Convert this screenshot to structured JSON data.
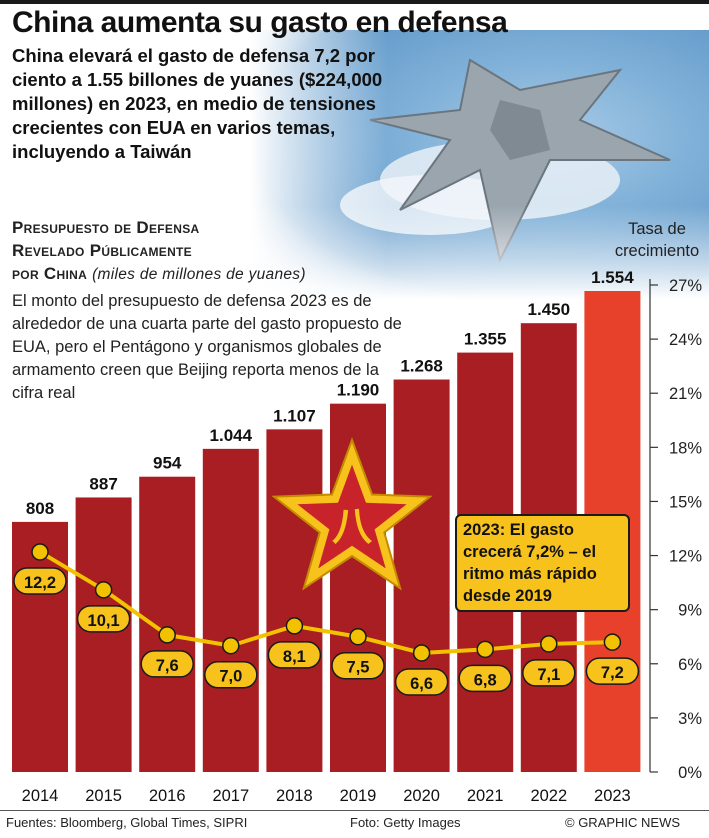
{
  "header": {
    "title": "China aumenta su gasto en defensa",
    "subtitle": "China elevará el gasto de defensa 7,2 por ciento a 1.55 billones de yuanes ($224,000  millones) en 2023, en medio de tensiones crecientes con EUA en varios temas, incluyendo a Taiwán"
  },
  "chart_section": {
    "title_line1": "Presupuesto de Defensa",
    "title_line2": "Revelado Públicamente",
    "title_line3": "por China",
    "unit": "(miles de millones de yuanes)",
    "note": "El monto del presupuesto de defensa 2023 es de alrededor de una cuarta parte del gasto propuesto de EUA, pero el Pentágono y organismos globales de armamento creen que Beijing reporta menos de la cifra real",
    "right_axis_title": "Tasa de crecimiento"
  },
  "chart_data": {
    "type": "bar",
    "categories": [
      "2014",
      "2015",
      "2016",
      "2017",
      "2018",
      "2019",
      "2020",
      "2021",
      "2022",
      "2023"
    ],
    "series": [
      {
        "type": "bar",
        "values": [
          808,
          887,
          954,
          1044,
          1107,
          1190,
          1268,
          1355,
          1450,
          1554
        ],
        "labels": [
          "808",
          "887",
          "954",
          "1.044",
          "1.107",
          "1.190",
          "1.268",
          "1.355",
          "1.450",
          "1.554"
        ]
      },
      {
        "type": "line",
        "axis": "right",
        "values": [
          12.2,
          10.1,
          7.6,
          7.0,
          8.1,
          7.5,
          6.6,
          6.8,
          7.1,
          7.2
        ],
        "labels": [
          "12,2",
          "10,1",
          "7,6",
          "7,0",
          "8,1",
          "7,5",
          "6,6",
          "6,8",
          "7,1",
          "7,2"
        ]
      }
    ],
    "bars_ylim": [
      0,
      1554
    ],
    "right_axis": {
      "ticks": [
        "0%",
        "3%",
        "6%",
        "9%",
        "12%",
        "15%",
        "18%",
        "21%",
        "24%",
        "27%"
      ],
      "ylim": [
        0,
        27
      ]
    },
    "annotation": "2023: El gasto crecerá 7,2% – el ritmo más rápido desde 2019",
    "colors": {
      "bar": "#a81e22",
      "bar_highlight": "#e8412b",
      "line": "#f2c200",
      "label_fill": "#f7c21c",
      "star": "#f7c21c",
      "star_inner": "#c8222a"
    }
  },
  "footer": {
    "sources": "Fuentes: Bloomberg, Global Times, SIPRI",
    "photo": "Foto: Getty Images",
    "credit": "© GRAPHIC NEWS"
  }
}
